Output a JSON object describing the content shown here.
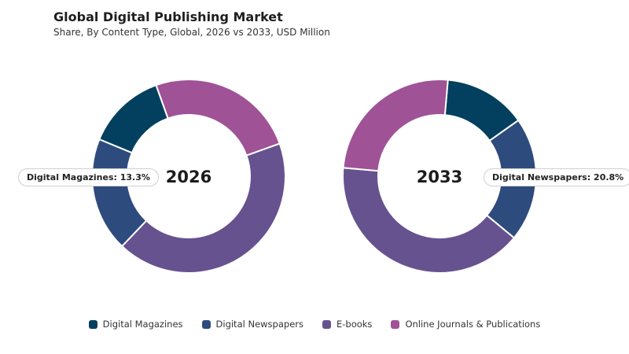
{
  "header": {
    "title": "Global Digital Publishing Market",
    "subtitle": "Share, By Content Type, Global, 2026 vs 2033, USD Million"
  },
  "colors": {
    "digital_magazines": "#03405f",
    "digital_newspapers": "#2e4b7d",
    "e_books": "#66528f",
    "online_journals": "#a05296"
  },
  "legend": [
    {
      "label": "Digital Magazines",
      "color": "#03405f"
    },
    {
      "label": "Digital Newspapers",
      "color": "#2e4b7d"
    },
    {
      "label": "E-books",
      "color": "#66528f"
    },
    {
      "label": "Online Journals & Publications",
      "color": "#a05296"
    }
  ],
  "callouts": {
    "left": "Digital Magazines: 13.3%",
    "right": "Digital Newspapers: 20.8%"
  },
  "chart_data": [
    {
      "type": "pie",
      "center_label": "2026",
      "categories": [
        "Digital Magazines",
        "Online Journals & Publications",
        "E-books",
        "Digital Newspapers"
      ],
      "values": [
        13.3,
        25.0,
        42.6,
        19.1
      ],
      "colors": [
        "#03405f",
        "#a05296",
        "#66528f",
        "#2e4b7d"
      ],
      "start_angle_deg": 292.4
    },
    {
      "type": "pie",
      "center_label": "2033",
      "categories": [
        "Digital Magazines",
        "Digital Newspapers",
        "E-books",
        "Online Journals & Publications"
      ],
      "values": [
        13.8,
        20.8,
        40.4,
        25.0
      ],
      "colors": [
        "#03405f",
        "#2e4b7d",
        "#66528f",
        "#a05296"
      ],
      "start_angle_deg": 5
    }
  ]
}
